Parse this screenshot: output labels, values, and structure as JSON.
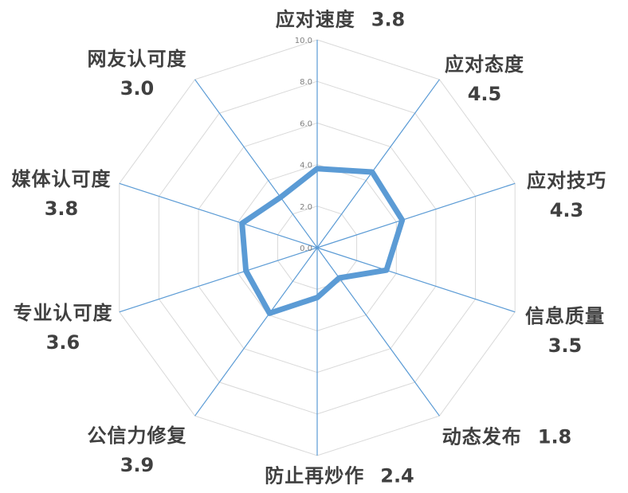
{
  "chart_data": {
    "type": "radar",
    "title": "",
    "categories": [
      "应对速度",
      "应对态度",
      "应对技巧",
      "信息质量",
      "动态发布",
      "防止再炒作",
      "公信力修复",
      "专业认可度",
      "媒体认可度",
      "网友认可度"
    ],
    "series": [
      {
        "name": "",
        "values": [
          3.8,
          4.5,
          4.3,
          3.5,
          1.8,
          2.4,
          3.9,
          3.6,
          3.8,
          3.0
        ]
      }
    ],
    "value_labels": [
      "3.8",
      "4.5",
      "4.3",
      "3.5",
      "1.8",
      "2.4",
      "3.9",
      "3.6",
      "3.8",
      "3.0"
    ],
    "axis": {
      "min": 0,
      "max": 10,
      "major_unit": 2,
      "tick_labels": [
        "0.0",
        "2.0",
        "4.0",
        "6.0",
        "8.0",
        "10.0"
      ]
    },
    "grid": true,
    "legend": "none",
    "colors": {
      "series_line": "#5B9BD5",
      "spoke_line": "#5B9BD5",
      "ring_line": "#D9D9D9",
      "tick_text": "#7F7F7F",
      "label_text": "#404040",
      "background": "#FFFFFF"
    }
  }
}
